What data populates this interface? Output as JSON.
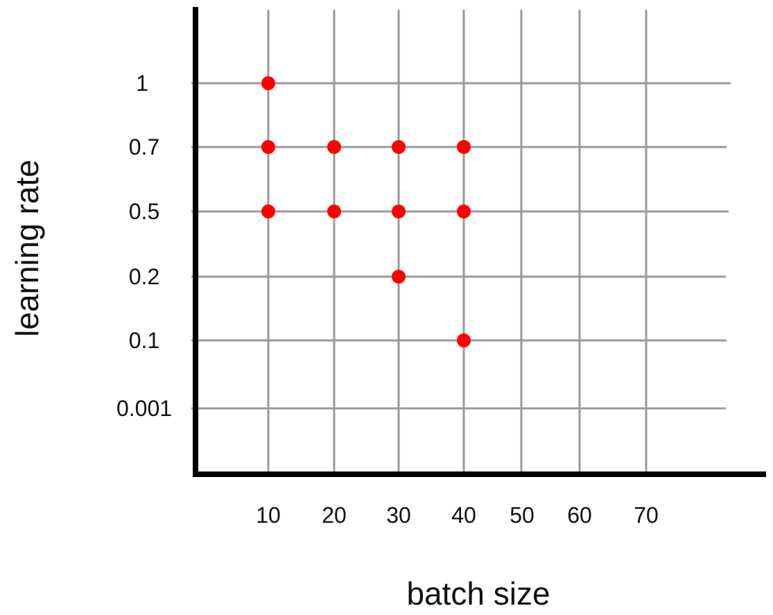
{
  "chart_data": {
    "type": "scatter",
    "xlabel": "batch size",
    "ylabel": "learning rate",
    "x_ticks": [
      "10",
      "20",
      "30",
      "40",
      "50",
      "60",
      "70"
    ],
    "y_ticks": [
      "1",
      "0.7",
      "0.5",
      "0.2",
      "0.1",
      "0.001"
    ],
    "y_scale": "categorical",
    "grid": true,
    "legend": "none",
    "series": [
      {
        "points": [
          {
            "x": 10,
            "y": "1"
          },
          {
            "x": 10,
            "y": "0.7"
          },
          {
            "x": 20,
            "y": "0.7"
          },
          {
            "x": 30,
            "y": "0.7"
          },
          {
            "x": 40,
            "y": "0.7"
          },
          {
            "x": 10,
            "y": "0.5"
          },
          {
            "x": 20,
            "y": "0.5"
          },
          {
            "x": 30,
            "y": "0.5"
          },
          {
            "x": 40,
            "y": "0.5"
          },
          {
            "x": 30,
            "y": "0.2"
          },
          {
            "x": 40,
            "y": "0.1"
          }
        ],
        "color": "#ff0000"
      }
    ],
    "colors": {
      "grid": "#9a9a9a",
      "axis": "#000000",
      "point": "#ff0000"
    }
  }
}
